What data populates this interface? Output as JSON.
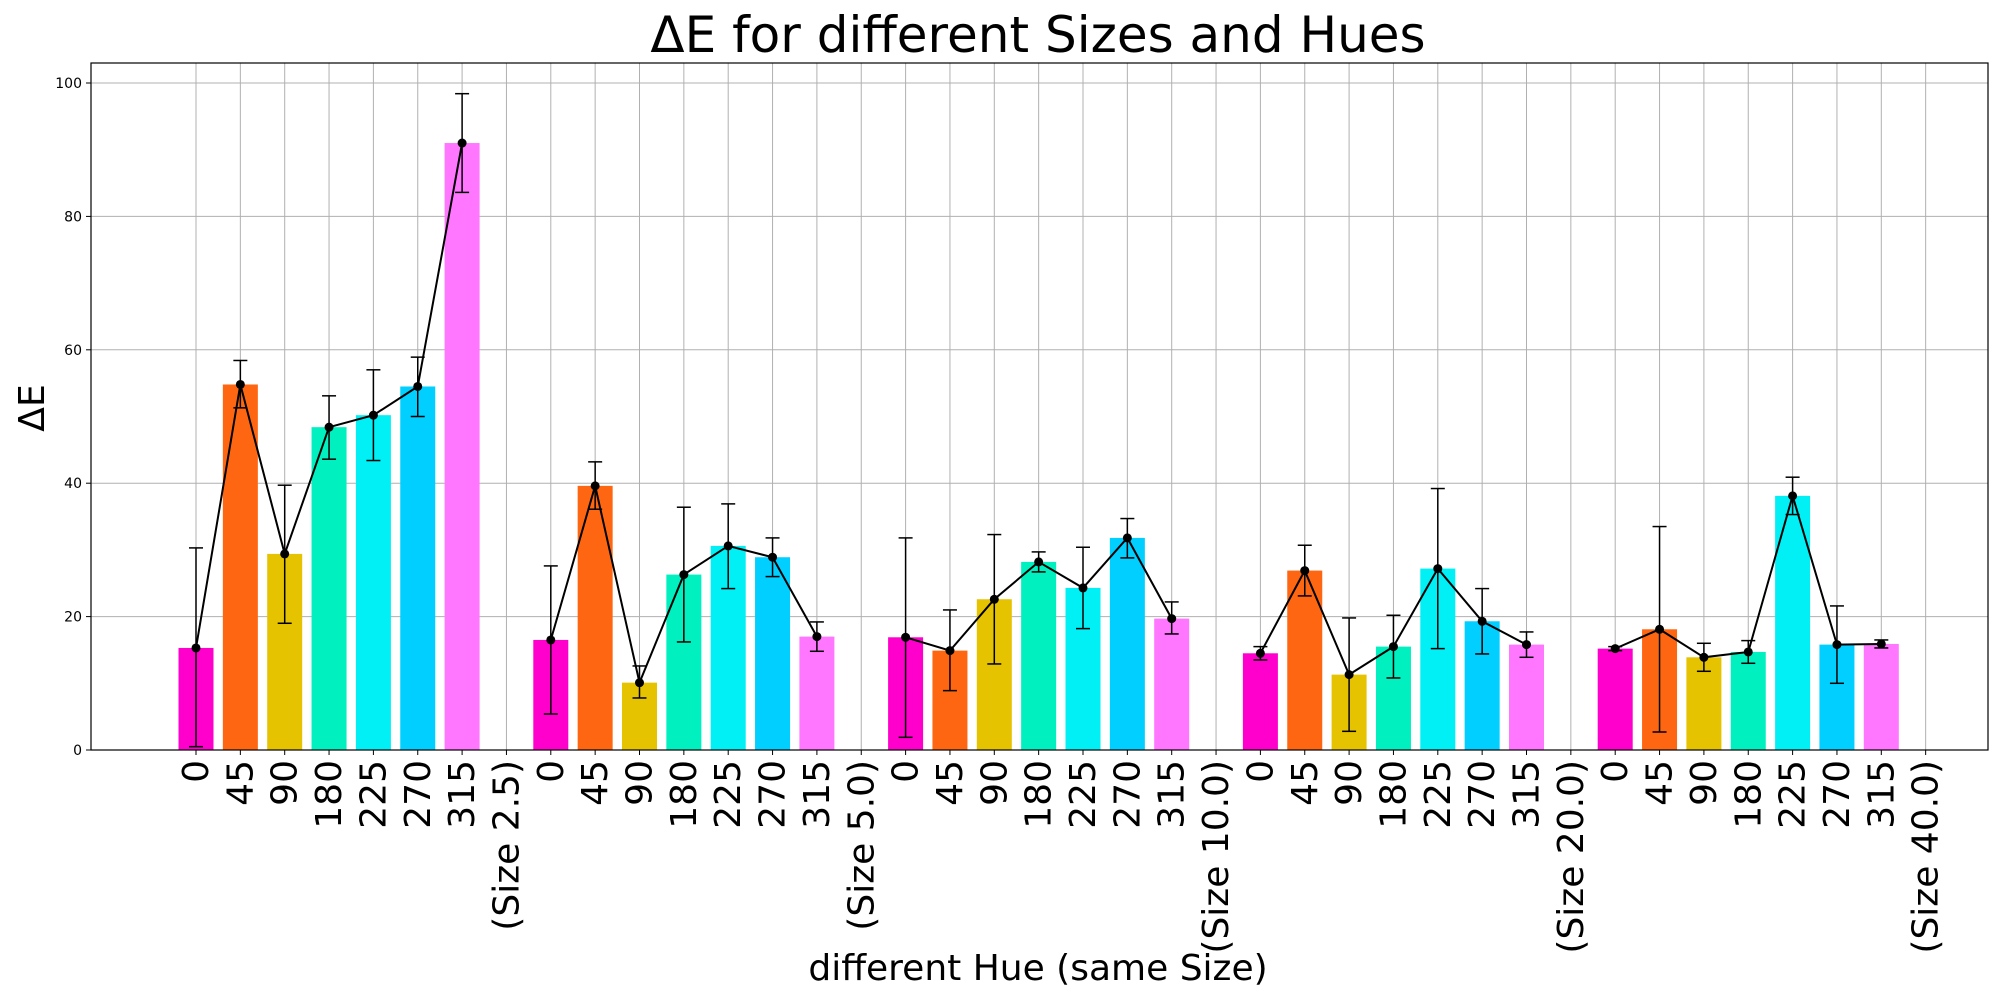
{
  "chart_data": {
    "type": "bar",
    "title": "ΔE for different Sizes and Hues",
    "xlabel": "different Hue (same Size)",
    "ylabel": "ΔE",
    "ylim": [
      0,
      103
    ],
    "yticks": [
      0,
      20,
      40,
      60,
      80,
      100
    ],
    "grid": true,
    "hue_colors": {
      "0": "#ff00cc",
      "45": "#ff6611",
      "90": "#e6c300",
      "180": "#00f0c0",
      "225": "#00f0f5",
      "270": "#00cfff",
      "315": "#ff77ff"
    },
    "groups": [
      {
        "size_label": "(Size 2.5)",
        "hues": [
          "0",
          "45",
          "90",
          "180",
          "225",
          "270",
          "315"
        ],
        "values": [
          15.3,
          54.8,
          29.4,
          48.4,
          50.2,
          54.5,
          91.0
        ],
        "err_low": [
          0.5,
          51.3,
          19.0,
          43.6,
          43.4,
          50.0,
          83.6
        ],
        "err_high": [
          30.3,
          58.4,
          39.7,
          53.1,
          57.0,
          58.9,
          98.4
        ]
      },
      {
        "size_label": "(Size 5.0)",
        "hues": [
          "0",
          "45",
          "90",
          "180",
          "225",
          "270",
          "315"
        ],
        "values": [
          16.5,
          39.6,
          10.1,
          26.3,
          30.6,
          28.9,
          17.0
        ],
        "err_low": [
          5.4,
          36.1,
          7.8,
          16.2,
          24.2,
          26.0,
          14.8
        ],
        "err_high": [
          27.6,
          43.2,
          12.6,
          36.4,
          36.9,
          31.8,
          19.2
        ]
      },
      {
        "size_label": "(Size 10.0)",
        "hues": [
          "0",
          "45",
          "90",
          "180",
          "225",
          "270",
          "315"
        ],
        "values": [
          16.9,
          14.9,
          22.6,
          28.2,
          24.3,
          31.8,
          19.7
        ],
        "err_low": [
          1.9,
          8.9,
          12.9,
          26.7,
          18.2,
          28.8,
          17.4
        ],
        "err_high": [
          31.8,
          21.0,
          32.3,
          29.7,
          30.4,
          34.7,
          22.2
        ]
      },
      {
        "size_label": "(Size 20.0)",
        "hues": [
          "0",
          "45",
          "90",
          "180",
          "225",
          "270",
          "315"
        ],
        "values": [
          14.5,
          26.9,
          11.3,
          15.5,
          27.2,
          19.3,
          15.8
        ],
        "err_low": [
          13.5,
          23.1,
          2.8,
          10.8,
          15.2,
          14.4,
          13.9
        ],
        "err_high": [
          15.5,
          30.7,
          19.8,
          20.2,
          39.2,
          24.2,
          17.7
        ]
      },
      {
        "size_label": "(Size 40.0)",
        "hues": [
          "0",
          "45",
          "90",
          "180",
          "225",
          "270",
          "315"
        ],
        "values": [
          15.2,
          18.1,
          13.9,
          14.7,
          38.1,
          15.8,
          15.9
        ],
        "err_low": [
          14.9,
          2.7,
          11.8,
          13.0,
          35.3,
          10.0,
          15.3
        ],
        "err_high": [
          15.5,
          33.5,
          16.0,
          16.4,
          40.9,
          21.6,
          16.5
        ]
      }
    ]
  }
}
